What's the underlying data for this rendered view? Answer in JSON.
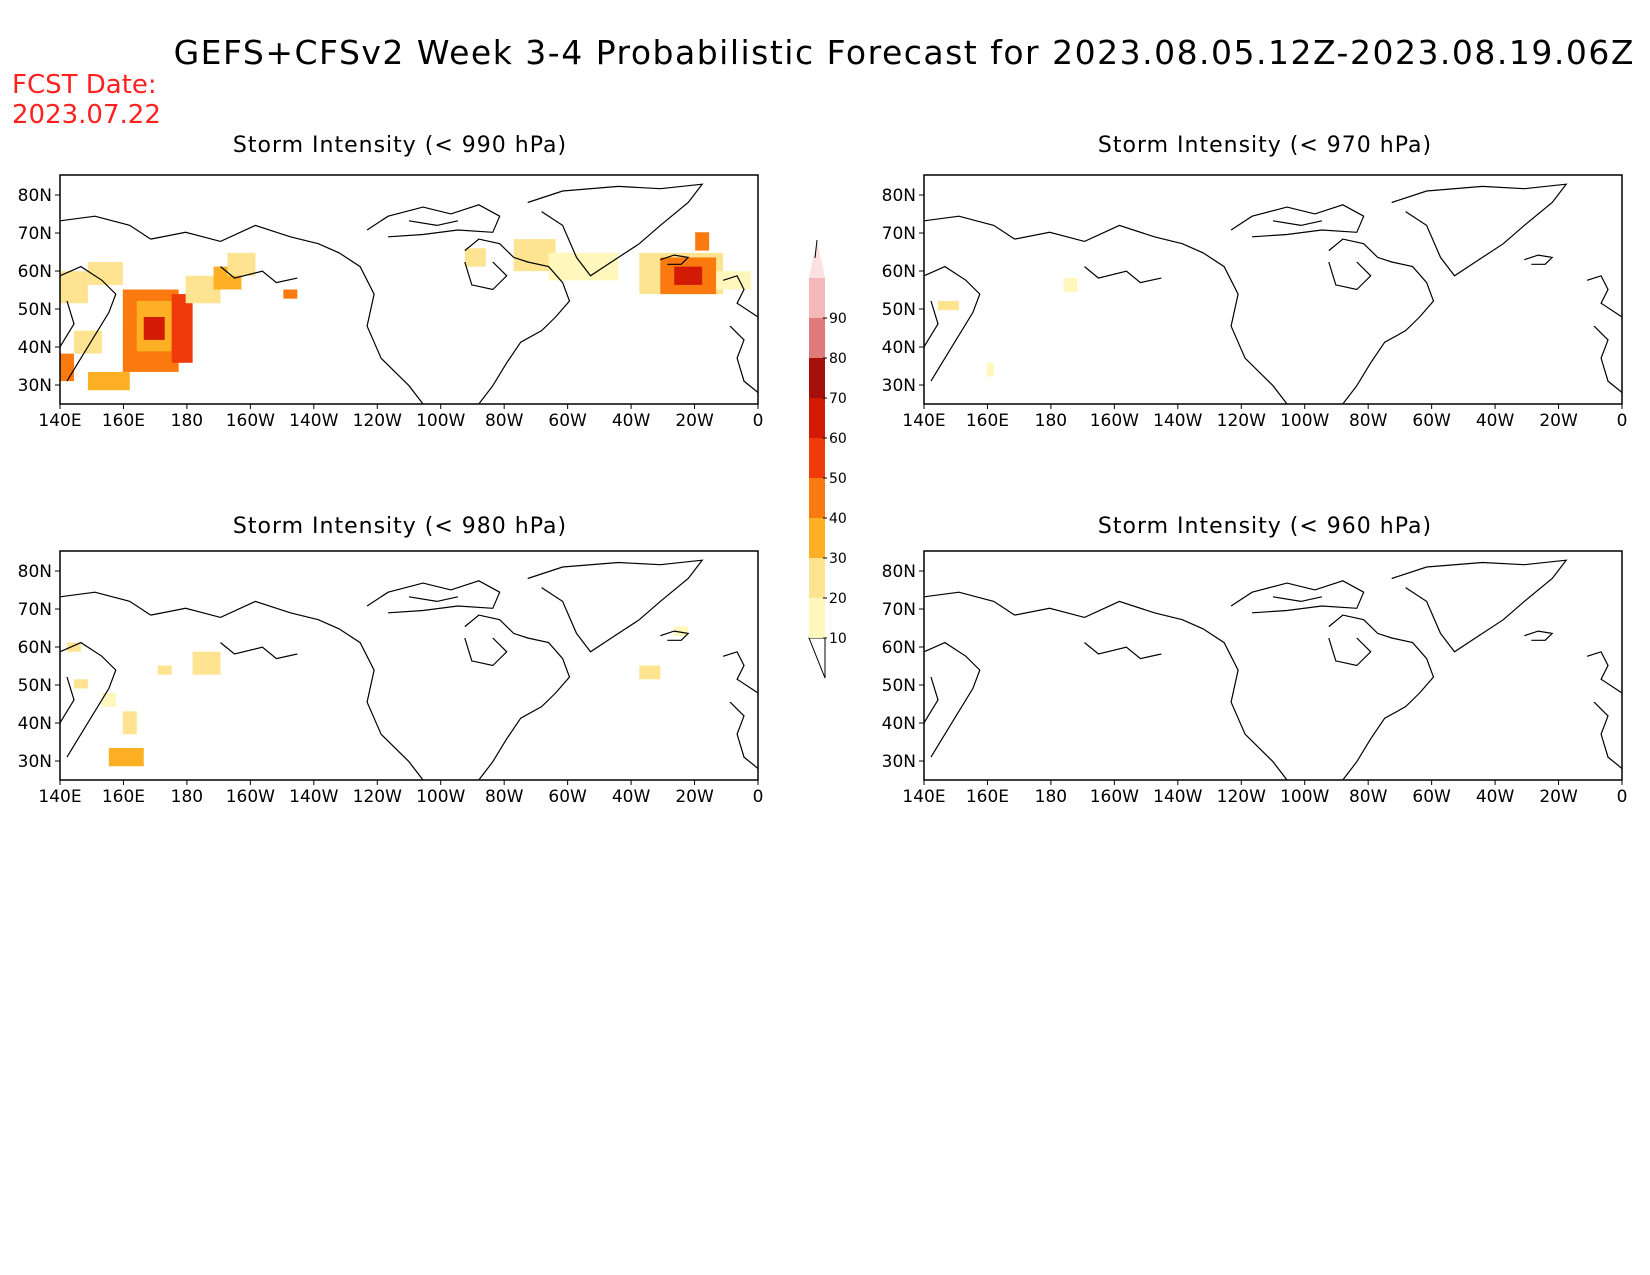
{
  "title": "GEFS+CFSv2 Week 3-4 Probabilistic Forecast for 2023.08.05.12Z-2023.08.19.06Z",
  "fcst_date": {
    "label": "FCST Date:",
    "value": "2023.07.22"
  },
  "lat_labels": [
    "80N",
    "70N",
    "60N",
    "50N",
    "40N",
    "30N"
  ],
  "lon_labels": [
    "140E",
    "160E",
    "180",
    "160W",
    "140W",
    "120W",
    "100W",
    "80W",
    "60W",
    "40W",
    "20W",
    "0"
  ],
  "panels": [
    {
      "id": "p990",
      "title": "Storm Intensity (< 990 hPa)"
    },
    {
      "id": "p970",
      "title": "Storm Intensity (< 970 hPa)"
    },
    {
      "id": "p980",
      "title": "Storm Intensity (< 980 hPa)"
    },
    {
      "id": "p960",
      "title": "Storm Intensity (< 960 hPa)"
    }
  ],
  "colorbar": {
    "levels": [
      "10",
      "20",
      "30",
      "40",
      "50",
      "60",
      "70",
      "80",
      "90"
    ],
    "colors": [
      "#fff7bc",
      "#fee391",
      "#fdb024",
      "#fb7a10",
      "#ef3b0c",
      "#d21a05",
      "#a50f0a",
      "#e07a7a",
      "#f4b8b8",
      "#fde0e0"
    ]
  },
  "colors": {
    "title_text": "#000000",
    "fcst_text": "#ff2020",
    "coast": "#000000"
  }
}
